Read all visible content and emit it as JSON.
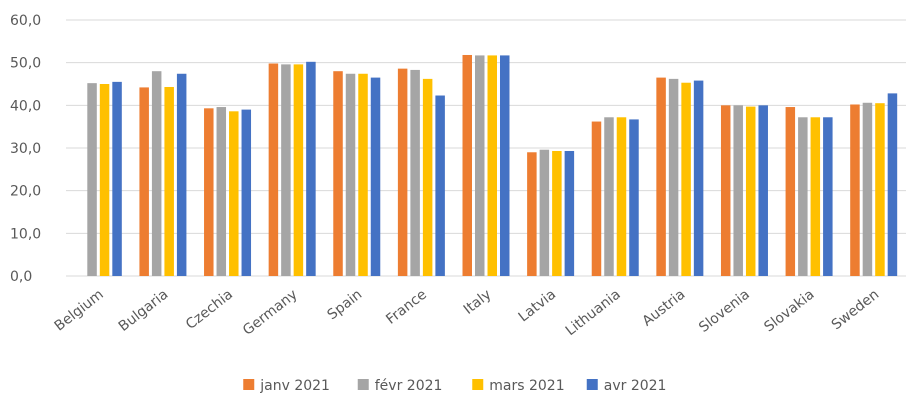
{
  "chart_data": {
    "type": "bar",
    "categories": [
      "Belgium",
      "Bulgaria",
      "Czechia",
      "Germany",
      "Spain",
      "France",
      "Italy",
      "Latvia",
      "Lithuania",
      "Austria",
      "Slovenia",
      "Slovakia",
      "Sweden"
    ],
    "series": [
      {
        "name": "janv 2021",
        "color": "#ed7d31",
        "values": [
          null,
          44.2,
          39.3,
          49.8,
          48.0,
          48.6,
          51.8,
          29.0,
          36.2,
          46.5,
          40.0,
          39.6,
          40.2
        ]
      },
      {
        "name": "févr 2021",
        "color": "#a5a5a5",
        "values": [
          45.2,
          48.0,
          39.6,
          49.6,
          47.4,
          48.3,
          51.7,
          29.6,
          37.2,
          46.2,
          40.0,
          37.2,
          40.6
        ]
      },
      {
        "name": "mars 2021",
        "color": "#ffc000",
        "values": [
          45.0,
          44.3,
          38.6,
          49.6,
          47.4,
          46.2,
          51.7,
          29.3,
          37.2,
          45.3,
          39.7,
          37.2,
          40.5
        ]
      },
      {
        "name": "avr 2021",
        "color": "#4472c4",
        "values": [
          45.5,
          47.4,
          39.0,
          50.2,
          46.5,
          42.3,
          51.7,
          29.3,
          36.7,
          45.8,
          40.0,
          37.2,
          42.8
        ]
      }
    ],
    "ylim": [
      0,
      60
    ],
    "yticks": [
      {
        "value": 0,
        "label": "0,0"
      },
      {
        "value": 10,
        "label": "10,0"
      },
      {
        "value": 20,
        "label": "20,0"
      },
      {
        "value": 30,
        "label": "30,0"
      },
      {
        "value": 40,
        "label": "40,0"
      },
      {
        "value": 50,
        "label": "50,0"
      },
      {
        "value": 60,
        "label": "60,0"
      }
    ],
    "grid": true
  }
}
